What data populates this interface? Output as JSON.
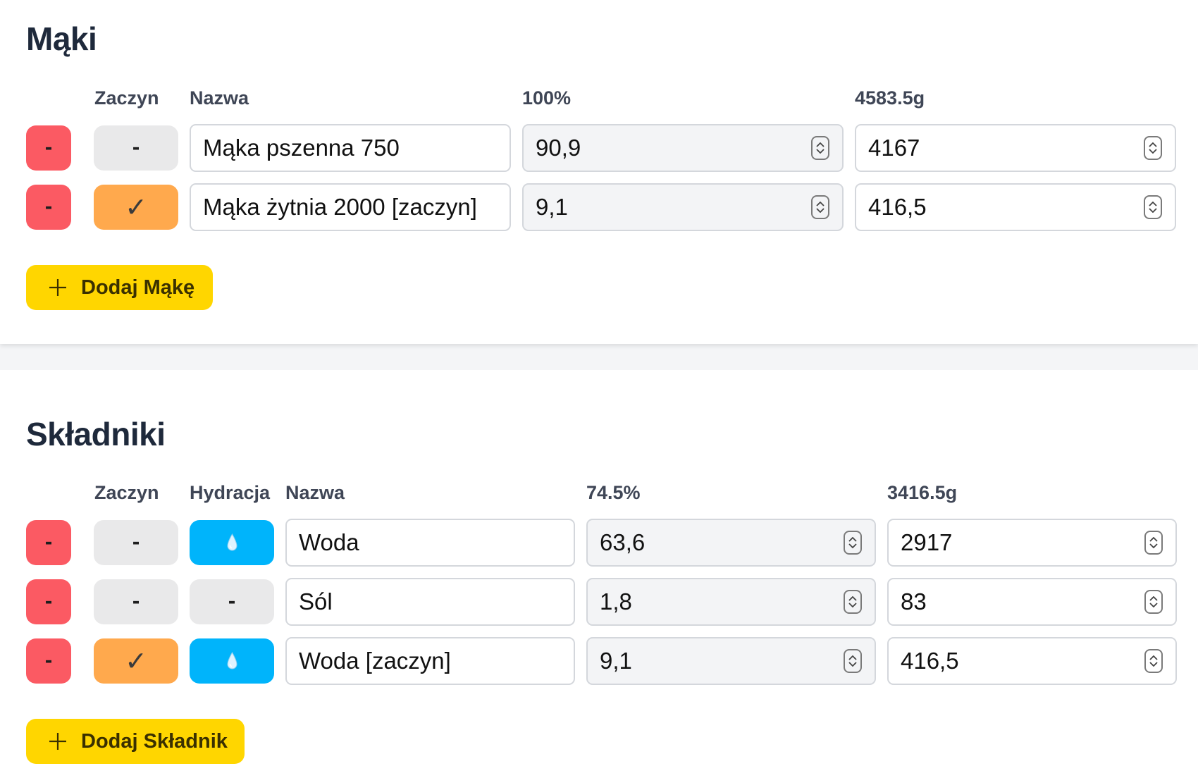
{
  "flours": {
    "title": "Mąki",
    "headers": {
      "starter": "Zaczyn",
      "name": "Nazwa",
      "percent": "100%",
      "weight": "4583.5g"
    },
    "rows": [
      {
        "remove": "-",
        "starter": "-",
        "starter_on": false,
        "name": "Mąka pszenna 750",
        "percent": "90,9",
        "weight": "4167"
      },
      {
        "remove": "-",
        "starter": "✓",
        "starter_on": true,
        "name": "Mąka żytnia 2000 [zaczyn]",
        "percent": "9,1",
        "weight": "416,5"
      }
    ],
    "add_label": "Dodaj Mąkę"
  },
  "ingredients": {
    "title": "Składniki",
    "headers": {
      "starter": "Zaczyn",
      "hydration": "Hydracja",
      "name": "Nazwa",
      "percent": "74.5%",
      "weight": "3416.5g"
    },
    "rows": [
      {
        "remove": "-",
        "starter": "-",
        "starter_on": false,
        "hydration_on": true,
        "hydration": "",
        "name": "Woda",
        "percent": "63,6",
        "weight": "2917"
      },
      {
        "remove": "-",
        "starter": "-",
        "starter_on": false,
        "hydration_on": false,
        "hydration": "-",
        "name": "Sól",
        "percent": "1,8",
        "weight": "83"
      },
      {
        "remove": "-",
        "starter": "✓",
        "starter_on": true,
        "hydration_on": true,
        "hydration": "",
        "name": "Woda [zaczyn]",
        "percent": "9,1",
        "weight": "416,5"
      }
    ],
    "add_label": "Dodaj Składnik"
  },
  "icons": {
    "hydration": "water-drop-icon",
    "starter": "checkmark-icon",
    "add": "plus-icon",
    "spinner": "stepper-arrows-icon"
  },
  "colors": {
    "remove": "#fb5a63",
    "starter_on": "#ffa94d",
    "hydration_on": "#00b4fb",
    "toggle_off": "#e9e9ea",
    "add": "#ffd600"
  }
}
